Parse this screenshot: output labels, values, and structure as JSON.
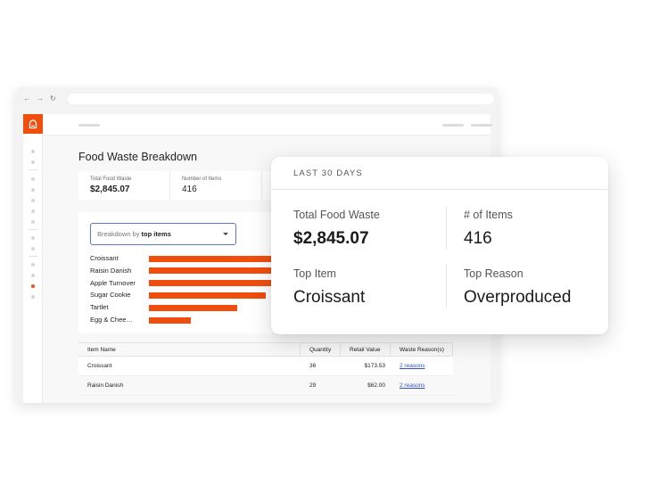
{
  "browser": {
    "nav": {
      "back": "←",
      "forward": "→",
      "refresh": "↻"
    }
  },
  "page": {
    "title": "Food Waste Breakdown"
  },
  "stats": [
    {
      "label": "Total Food Waste",
      "value": "$2,845.07"
    },
    {
      "label": "Number of Items",
      "value": "416"
    }
  ],
  "breakdown": {
    "prefix": "Breakdown by",
    "selected": "top items"
  },
  "chart_data": {
    "type": "bar",
    "orientation": "horizontal",
    "categories": [
      "Croissant",
      "Raisin Danish",
      "Apple Turnover",
      "Sugar Cookie",
      "Tartlet",
      "Egg & Chee…"
    ],
    "values": [
      141,
      141,
      141,
      131,
      99,
      47
    ],
    "bar_color": "#f04e0f"
  },
  "table": {
    "headers": [
      "Item Name",
      "Quantity",
      "Retail Value",
      "Waste Reason(s)"
    ],
    "rows": [
      {
        "name": "Croissant",
        "quantity": "36",
        "retail_value": "$173.53",
        "reasons": "2 reasons"
      },
      {
        "name": "Raisin Danish",
        "quantity": "29",
        "retail_value": "$62.00",
        "reasons": "2 reasons"
      }
    ]
  },
  "summary": {
    "period": "LAST 30 DAYS",
    "total_label": "Total Food Waste",
    "total_value": "$2,845.07",
    "items_label": "# of Items",
    "items_value": "416",
    "top_item_label": "Top Item",
    "top_item_value": "Croissant",
    "top_reason_label": "Top Reason",
    "top_reason_value": "Overproduced"
  },
  "colors": {
    "accent": "#f04e0f",
    "link": "#2f55c4",
    "focus": "#5b79c9"
  }
}
